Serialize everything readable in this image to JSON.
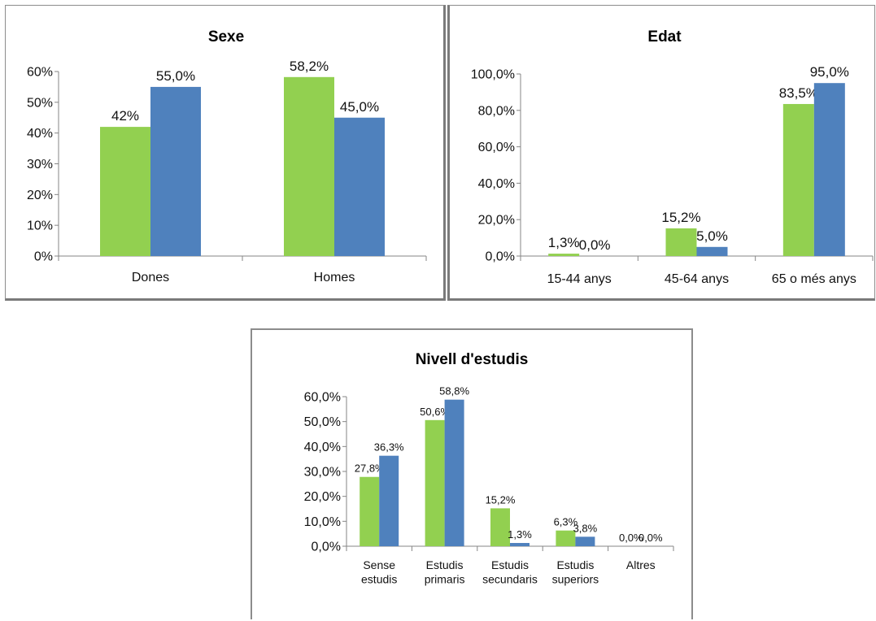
{
  "colors": {
    "series1": "#92d050",
    "series2": "#4f81bd",
    "axis": "#868686"
  },
  "chart_data": [
    {
      "type": "bar",
      "title": "Sexe",
      "categories": [
        "Dones",
        "Homes"
      ],
      "series": [
        {
          "values": [
            42.0,
            58.2
          ],
          "labels": [
            "42%",
            "58,2%"
          ]
        },
        {
          "values": [
            55.0,
            45.0
          ],
          "labels": [
            "55,0%",
            "45,0%"
          ]
        }
      ],
      "ylim": [
        0,
        60
      ],
      "yticks": [
        "0%",
        "10%",
        "20%",
        "30%",
        "40%",
        "50%",
        "60%"
      ],
      "grid": false
    },
    {
      "type": "bar",
      "title": "Edat",
      "categories": [
        "15-44 anys",
        "45-64 anys",
        "65 o més anys"
      ],
      "series": [
        {
          "values": [
            1.3,
            15.2,
            83.5
          ],
          "labels": [
            "1,3%",
            "15,2%",
            "83,5%"
          ]
        },
        {
          "values": [
            0.0,
            5.0,
            95.0
          ],
          "labels": [
            "0,0%",
            "5,0%",
            "95,0%"
          ]
        }
      ],
      "ylim": [
        0,
        100
      ],
      "yticks": [
        "0,0%",
        "20,0%",
        "40,0%",
        "60,0%",
        "80,0%",
        "100,0%"
      ],
      "grid": false
    },
    {
      "type": "bar",
      "title": "Nivell d'estudis",
      "categories": [
        [
          "Sense",
          "estudis"
        ],
        [
          "Estudis",
          "primaris"
        ],
        [
          "Estudis",
          "secundaris"
        ],
        [
          "Estudis",
          "superiors"
        ],
        [
          "Altres"
        ]
      ],
      "series": [
        {
          "values": [
            27.8,
            50.6,
            15.2,
            6.3,
            0.0
          ],
          "labels": [
            "27,8%",
            "50,6%",
            "15,2%",
            "6,3%",
            "0,0%"
          ]
        },
        {
          "values": [
            36.3,
            58.8,
            1.3,
            3.8,
            0.0
          ],
          "labels": [
            "36,3%",
            "58,8%",
            "1,3%",
            "3,8%",
            "0,0%"
          ]
        }
      ],
      "ylim": [
        0,
        60
      ],
      "yticks": [
        "0,0%",
        "10,0%",
        "20,0%",
        "30,0%",
        "40,0%",
        "50,0%",
        "60,0%"
      ],
      "grid": false
    }
  ]
}
